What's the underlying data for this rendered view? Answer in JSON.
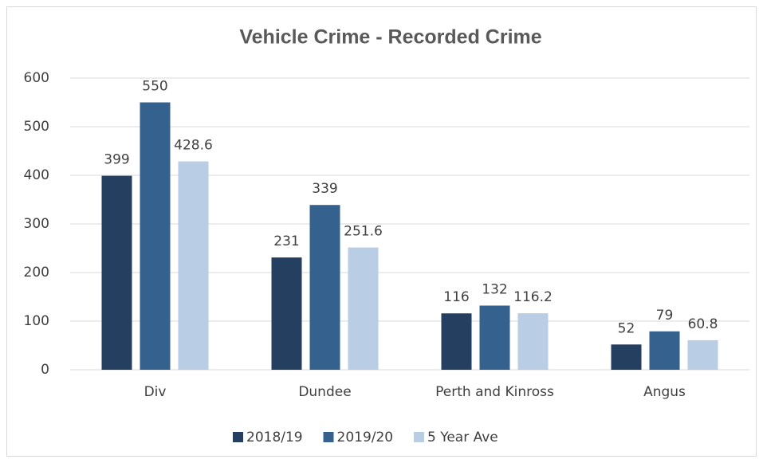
{
  "chart_data": {
    "type": "bar",
    "title": "Vehicle Crime - Recorded Crime",
    "categories": [
      "Div",
      "Dundee",
      "Perth and Kinross",
      "Angus"
    ],
    "series": [
      {
        "name": "2018/19",
        "color": "#243f60",
        "values": [
          399,
          231,
          116,
          52
        ]
      },
      {
        "name": "2019/20",
        "color": "#35618f",
        "values": [
          550,
          339,
          132,
          79
        ]
      },
      {
        "name": "5 Year Ave",
        "color": "#b9cde5",
        "values": [
          428.6,
          251.6,
          116.2,
          60.8
        ]
      }
    ],
    "ylim": [
      0,
      600
    ],
    "yticks": [
      0,
      100,
      200,
      300,
      400,
      500,
      600
    ],
    "grid": true,
    "legend": "bottom"
  }
}
